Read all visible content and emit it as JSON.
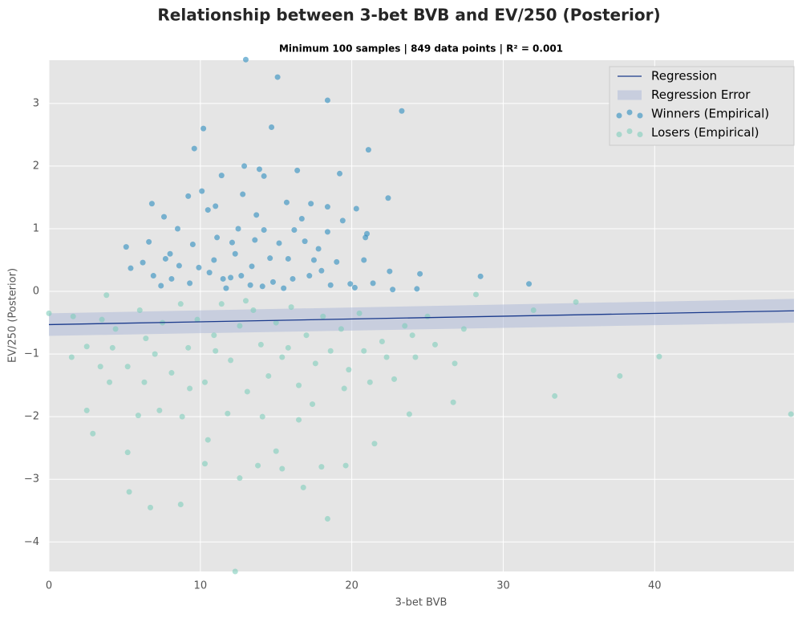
{
  "chart_data": {
    "type": "scatter",
    "title": "Relationship between 3-bet BVB and EV/250 (Posterior)",
    "subtitle": "Minimum 100 samples | 849 data points | R² =  0.001",
    "x_label": "3-bet BVB",
    "y_label": "EV/250 (Posterior)",
    "xlim": [
      0,
      49.2
    ],
    "ylim": [
      -4.47,
      3.69
    ],
    "xticks": [
      0,
      10,
      20,
      30,
      40
    ],
    "yticks": [
      {
        "value": -4,
        "label": "−4"
      },
      {
        "value": -3,
        "label": "−3"
      },
      {
        "value": -2,
        "label": "−2"
      },
      {
        "value": -1,
        "label": "−1"
      },
      0,
      1,
      2,
      3
    ],
    "grid": true,
    "legend": "upper right",
    "regression": {
      "name": "Regression",
      "color": "#1a3a8c",
      "x": [
        0,
        49.2
      ],
      "values": [
        -0.53,
        -0.31
      ]
    },
    "regression_error": {
      "name": "Regression Error",
      "color": "#b0bcd8",
      "x": [
        0,
        49.2
      ],
      "lower": [
        -0.71,
        -0.5
      ],
      "upper": [
        -0.35,
        -0.12
      ]
    },
    "series": [
      {
        "name": "Winners (Empirical)",
        "color": "#2b8cbe",
        "x": [
          13,
          15.1,
          18.4,
          23.3,
          10.2,
          14.7,
          9.6,
          21.1,
          12.9,
          13.9,
          16.4,
          19.2,
          11.4,
          14.2,
          9.2,
          10.1,
          22.4,
          6.8,
          12.8,
          15.7,
          17.3,
          18.4,
          20.3,
          7.6,
          11.0,
          13.7,
          16.7,
          19.4,
          8.5,
          10.5,
          12.5,
          14.2,
          16.2,
          18.4,
          21,
          5.1,
          6.6,
          8.0,
          9.5,
          11.1,
          12.1,
          13.6,
          15.2,
          16.9,
          17.8,
          20.9,
          6.2,
          7.7,
          8.6,
          9.9,
          10.9,
          12.3,
          13.4,
          14.6,
          15.8,
          17.5,
          19.0,
          20.8,
          22.5,
          24.5,
          5.4,
          6.9,
          8.1,
          9.3,
          10.6,
          11.5,
          12.7,
          13.3,
          14.8,
          16.1,
          17.2,
          18.0,
          19.9,
          21.4,
          22.7,
          24.3,
          28.5,
          31.7,
          7.4,
          11.7,
          15.5,
          18.6,
          20.2,
          12.0,
          14.1
        ],
        "values": [
          3.7,
          3.42,
          3.05,
          2.88,
          2.6,
          2.62,
          2.28,
          2.26,
          2.0,
          1.95,
          1.93,
          1.88,
          1.85,
          1.84,
          1.52,
          1.6,
          1.49,
          1.4,
          1.55,
          1.42,
          1.4,
          1.35,
          1.32,
          1.19,
          1.36,
          1.22,
          1.16,
          1.13,
          1.0,
          1.3,
          1.0,
          0.98,
          0.98,
          0.95,
          0.92,
          0.71,
          0.79,
          0.6,
          0.75,
          0.86,
          0.78,
          0.82,
          0.77,
          0.8,
          0.68,
          0.86,
          0.46,
          0.52,
          0.41,
          0.38,
          0.5,
          0.6,
          0.4,
          0.53,
          0.52,
          0.5,
          0.47,
          0.5,
          0.32,
          0.28,
          0.37,
          0.25,
          0.2,
          0.13,
          0.3,
          0.2,
          0.25,
          0.1,
          0.15,
          0.2,
          0.25,
          0.33,
          0.12,
          0.13,
          0.03,
          0.04,
          0.24,
          0.12,
          0.09,
          0.05,
          0.05,
          0.1,
          0.06,
          0.22,
          0.08
        ]
      },
      {
        "name": "Losers (Empirical)",
        "color": "#7fcdbb",
        "x": [
          0,
          1.6,
          2.5,
          3.5,
          3.8,
          4.4,
          5.2,
          6.0,
          6.4,
          7.0,
          7.5,
          8.1,
          8.7,
          9.2,
          9.8,
          10.3,
          10.9,
          11.4,
          12.0,
          12.6,
          13.1,
          13.5,
          14.0,
          14.5,
          15.0,
          15.4,
          16.0,
          16.5,
          17.0,
          17.6,
          18.1,
          18.6,
          19.3,
          19.8,
          20.5,
          21.2,
          22.0,
          22.8,
          23.5,
          24.2,
          25.0,
          26.8,
          27.4,
          28.2,
          32.0,
          34.8,
          40.3,
          37.7,
          33.4,
          49.0,
          26.7,
          23.8,
          2.5,
          2.9,
          5.2,
          5.3,
          6.7,
          8.7,
          10.3,
          12.6,
          12.3,
          13.8,
          15.0,
          15.4,
          16.8,
          18.0,
          18.4,
          19.6,
          21.5,
          10.5,
          8.8,
          7.3,
          9.3,
          11.8,
          14.1,
          16.5,
          19.5,
          5.9,
          6.3,
          1.5,
          3.4,
          4.2,
          4.0,
          22.3,
          24.0,
          25.5,
          11.0,
          13.0,
          15.8,
          17.4,
          20.8
        ],
        "values": [
          -0.35,
          -0.4,
          -0.88,
          -0.45,
          -0.06,
          -0.6,
          -1.2,
          -0.3,
          -0.75,
          -1.0,
          -0.5,
          -1.3,
          -0.2,
          -0.9,
          -0.45,
          -1.45,
          -0.7,
          -0.2,
          -1.1,
          -0.55,
          -1.6,
          -0.3,
          -0.85,
          -1.35,
          -0.5,
          -1.05,
          -0.25,
          -1.5,
          -0.7,
          -1.15,
          -0.4,
          -0.95,
          -0.6,
          -1.25,
          -0.35,
          -1.45,
          -0.8,
          -1.4,
          -0.55,
          -1.05,
          -0.4,
          -1.15,
          -0.6,
          -0.05,
          -0.3,
          -0.17,
          -1.04,
          -1.35,
          -1.67,
          -1.96,
          -1.77,
          -1.96,
          -1.9,
          -2.27,
          -2.57,
          -3.2,
          -3.45,
          -3.4,
          -2.75,
          -2.98,
          -4.47,
          -2.78,
          -2.55,
          -2.83,
          -3.13,
          -2.8,
          -3.63,
          -2.78,
          -2.43,
          -2.37,
          -2.0,
          -1.9,
          -1.55,
          -1.95,
          -2.0,
          -2.05,
          -1.55,
          -1.98,
          -1.45,
          -1.05,
          -1.2,
          -0.9,
          -1.45,
          -1.05,
          -0.7,
          -0.85,
          -0.95,
          -0.15,
          -0.9,
          -1.8,
          -0.95
        ]
      }
    ]
  }
}
